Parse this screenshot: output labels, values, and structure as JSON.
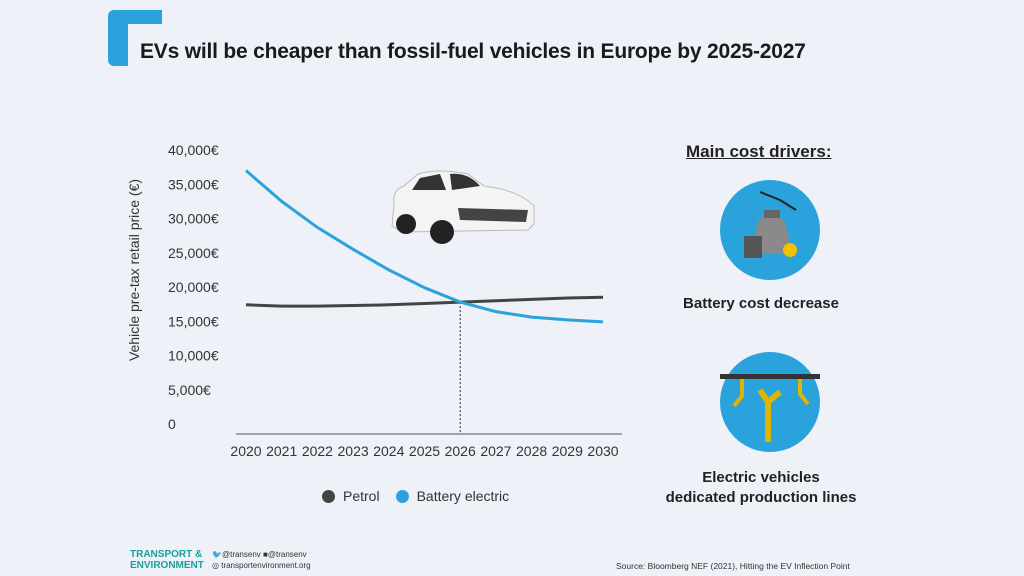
{
  "title": "EVs will be cheaper than fossil-fuel vehicles in Europe by 2025-2027",
  "chart_data": {
    "type": "line",
    "title": "EVs will be cheaper than fossil-fuel vehicles in Europe by 2025-2027",
    "ylabel": "Vehicle pre-tax retail price (€)",
    "xlabel": "",
    "x": [
      2020,
      2021,
      2022,
      2023,
      2024,
      2025,
      2026,
      2027,
      2028,
      2029,
      2030
    ],
    "ylim": [
      0,
      40000
    ],
    "yticks": [
      "0",
      "5,000€",
      "10,000€",
      "15,000€",
      "20,000€",
      "25,000€",
      "30,000€",
      "35,000€",
      "40,000€"
    ],
    "ytick_values": [
      0,
      5000,
      10000,
      15000,
      20000,
      25000,
      30000,
      35000,
      40000
    ],
    "grid": false,
    "legend": "bottom",
    "crossover_year": 2026,
    "series": [
      {
        "name": "Petrol",
        "color": "#444444",
        "values": [
          17400,
          17200,
          17200,
          17300,
          17400,
          17600,
          17800,
          18000,
          18200,
          18400,
          18500
        ]
      },
      {
        "name": "Battery electric",
        "color": "#2aa3dd",
        "values": [
          37000,
          32500,
          28700,
          25500,
          22500,
          19900,
          17800,
          16400,
          15600,
          15200,
          14900
        ]
      }
    ]
  },
  "drivers": {
    "title": "Main cost drivers:",
    "items": [
      {
        "label": "Battery cost decrease",
        "icon": "money-bag-battery-icon"
      },
      {
        "label": "Electric vehicles dedicated production lines",
        "line1": "Electric vehicles",
        "line2": "dedicated production lines",
        "icon": "robot-arms-icon"
      }
    ]
  },
  "footer": {
    "logo_line1": "TRANSPORT &",
    "logo_line2": "ENVIRONMENT",
    "twitter": "@transenv",
    "facebook": "@transenv",
    "website": "transportenvironment.org",
    "source": "Source: Bloomberg NEF (2021), Hitting the EV Inflection Point"
  },
  "colors": {
    "accent": "#2aa3dd",
    "petrol": "#444444",
    "background": "#eef1f8"
  }
}
